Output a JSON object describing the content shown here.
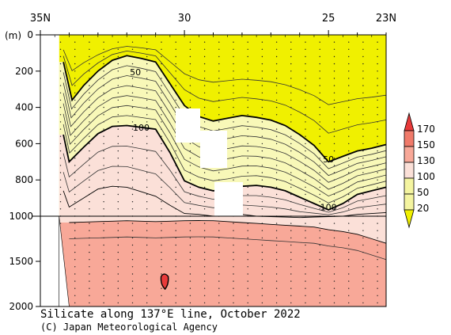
{
  "chart_data": {
    "type": "heatmap",
    "title": "Silicate along 137°E line, October 2022",
    "credit": "(C) Japan Meteorological Agency",
    "xlabel": "",
    "ylabel": "(m)",
    "x_axis": {
      "ticks": [
        "35N",
        "30",
        "25",
        "23N"
      ],
      "values": [
        35,
        30,
        25,
        23
      ],
      "range": [
        35,
        23
      ]
    },
    "y_axis_upper": {
      "ticks": [
        "0",
        "200",
        "400",
        "600",
        "800",
        "1000"
      ],
      "range": [
        0,
        1000
      ]
    },
    "y_axis_lower": {
      "ticks": [
        "1000",
        "1500",
        "2000"
      ],
      "range": [
        1000,
        2000
      ]
    },
    "colorbar": {
      "labels": [
        "170",
        "150",
        "130",
        "100",
        "50",
        "20"
      ],
      "colors": [
        "#e83a3a",
        "#f07a6a",
        "#f8a898",
        "#fbe0d8",
        "#f4f4a0",
        "#f0f000"
      ]
    },
    "contour_labels": [
      {
        "text": "50",
        "lat": 31.7,
        "depth": 210
      },
      {
        "text": "100",
        "lat": 31.5,
        "depth": 515
      },
      {
        "text": "50",
        "lat": 25.0,
        "depth": 690
      },
      {
        "text": "100",
        "lat": 25.0,
        "depth": 955
      }
    ],
    "contours": [
      {
        "value": 50,
        "bold": true,
        "points": [
          [
            34.2,
            150
          ],
          [
            33.9,
            360
          ],
          [
            33.5,
            280
          ],
          [
            33.0,
            200
          ],
          [
            32.5,
            140
          ],
          [
            32.0,
            115
          ],
          [
            31.5,
            130
          ],
          [
            31.0,
            150
          ],
          [
            30.5,
            270
          ],
          [
            30.0,
            390
          ],
          [
            29.5,
            450
          ],
          [
            29.0,
            475
          ],
          [
            28.5,
            460
          ],
          [
            28.0,
            445
          ],
          [
            27.5,
            455
          ],
          [
            27.0,
            470
          ],
          [
            26.5,
            500
          ],
          [
            26.0,
            550
          ],
          [
            25.5,
            610
          ],
          [
            25.0,
            700
          ],
          [
            24.5,
            670
          ],
          [
            24.0,
            640
          ],
          [
            23.5,
            625
          ],
          [
            23.0,
            605
          ]
        ]
      },
      {
        "value": 100,
        "bold": true,
        "points": [
          [
            34.2,
            550
          ],
          [
            34.0,
            700
          ],
          [
            33.5,
            620
          ],
          [
            33.0,
            545
          ],
          [
            32.5,
            505
          ],
          [
            32.0,
            500
          ],
          [
            31.5,
            510
          ],
          [
            31.0,
            520
          ],
          [
            30.5,
            650
          ],
          [
            30.0,
            805
          ],
          [
            29.5,
            840
          ],
          [
            29.0,
            860
          ],
          [
            28.5,
            850
          ],
          [
            28.0,
            835
          ],
          [
            27.5,
            830
          ],
          [
            27.0,
            840
          ],
          [
            26.5,
            860
          ],
          [
            26.0,
            895
          ],
          [
            25.5,
            930
          ],
          [
            25.0,
            965
          ],
          [
            24.5,
            930
          ],
          [
            24.0,
            880
          ],
          [
            23.5,
            860
          ],
          [
            23.0,
            840
          ]
        ]
      },
      {
        "value": 130,
        "bold": false,
        "points": [
          [
            34.2,
            860
          ],
          [
            34.0,
            950
          ],
          [
            33.5,
            900
          ],
          [
            33.0,
            850
          ],
          [
            32.5,
            835
          ],
          [
            32.0,
            840
          ],
          [
            31.5,
            865
          ],
          [
            31.0,
            890
          ],
          [
            30.5,
            940
          ],
          [
            30.0,
            985
          ],
          [
            29.5,
            990
          ],
          [
            29.0,
            1000
          ],
          [
            28.5,
            995
          ],
          [
            28.0,
            990
          ],
          [
            27.5,
            1000
          ],
          [
            27.0,
            1005
          ],
          [
            26.5,
            1010
          ],
          [
            26.0,
            1015
          ],
          [
            25.5,
            1010
          ],
          [
            25.0,
            1005
          ],
          [
            24.5,
            1000
          ],
          [
            24.0,
            990
          ],
          [
            23.5,
            985
          ],
          [
            23.0,
            980
          ]
        ]
      },
      {
        "value": 150,
        "bold": false,
        "points": [
          [
            34.0,
            1070
          ],
          [
            33.5,
            1065
          ],
          [
            33.0,
            1060
          ],
          [
            32.5,
            1055
          ],
          [
            32.0,
            1050
          ],
          [
            31.5,
            1055
          ],
          [
            31.0,
            1060
          ],
          [
            30.5,
            1055
          ],
          [
            30.0,
            1050
          ],
          [
            29.5,
            1048
          ],
          [
            29.0,
            1050
          ],
          [
            28.5,
            1060
          ],
          [
            28.0,
            1070
          ],
          [
            27.5,
            1080
          ],
          [
            27.0,
            1090
          ],
          [
            26.5,
            1100
          ],
          [
            26.0,
            1110
          ],
          [
            25.5,
            1120
          ],
          [
            25.0,
            1150
          ],
          [
            24.5,
            1170
          ],
          [
            24.0,
            1200
          ],
          [
            23.5,
            1250
          ],
          [
            23.0,
            1300
          ]
        ]
      }
    ],
    "maximum_patch": {
      "value": 170,
      "lat": 30.7,
      "depth": 1720
    }
  }
}
